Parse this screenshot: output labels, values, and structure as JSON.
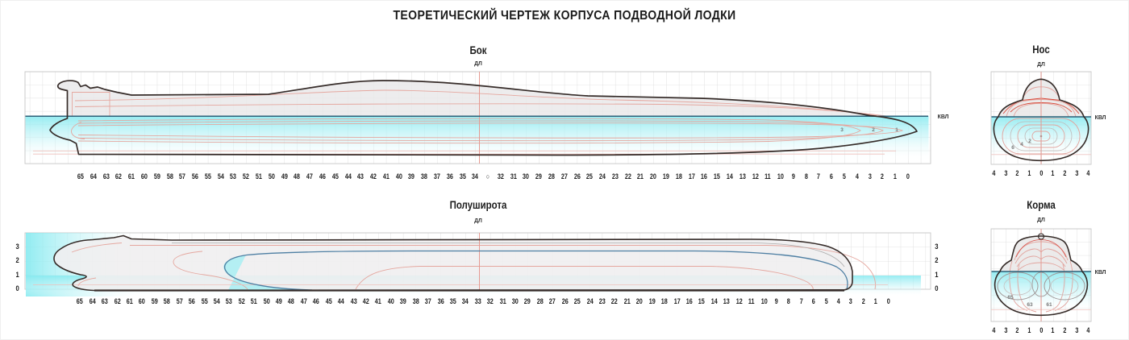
{
  "title": "ТЕОРЕТИЧЕСКИЙ ЧЕРТЕЖ КОРПУСА ПОДВОДНОЙ ЛОДКИ",
  "labels": {
    "centerline": "ДЛ",
    "waterline": "КВЛ"
  },
  "views": {
    "side": {
      "title": "Бок",
      "midship_symbol": "○",
      "stations": [
        "65",
        "64",
        "63",
        "62",
        "61",
        "60",
        "59",
        "58",
        "57",
        "56",
        "55",
        "54",
        "53",
        "52",
        "51",
        "50",
        "49",
        "48",
        "47",
        "46",
        "45",
        "44",
        "43",
        "42",
        "41",
        "40",
        "39",
        "38",
        "37",
        "36",
        "35",
        "34",
        "○",
        "32",
        "31",
        "30",
        "29",
        "28",
        "27",
        "26",
        "25",
        "24",
        "23",
        "22",
        "21",
        "20",
        "19",
        "18",
        "17",
        "16",
        "15",
        "14",
        "13",
        "12",
        "11",
        "10",
        "9",
        "8",
        "7",
        "6",
        "5",
        "4",
        "3",
        "2",
        "1",
        "0"
      ],
      "frame_labels": [
        "3",
        "2",
        "1"
      ]
    },
    "half_breadth": {
      "title": "Полуширота",
      "stations": [
        "65",
        "64",
        "63",
        "62",
        "61",
        "60",
        "59",
        "58",
        "57",
        "56",
        "55",
        "54",
        "53",
        "52",
        "51",
        "50",
        "49",
        "48",
        "47",
        "46",
        "45",
        "44",
        "43",
        "42",
        "41",
        "40",
        "39",
        "38",
        "37",
        "36",
        "35",
        "34",
        "33",
        "32",
        "31",
        "30",
        "29",
        "28",
        "27",
        "26",
        "25",
        "24",
        "23",
        "22",
        "21",
        "20",
        "19",
        "18",
        "17",
        "16",
        "15",
        "14",
        "13",
        "12",
        "11",
        "10",
        "9",
        "8",
        "7",
        "6",
        "5",
        "4",
        "3",
        "2",
        "1",
        "0"
      ],
      "scale": [
        "3",
        "2",
        "1",
        "0"
      ]
    },
    "bow": {
      "title": "Нос",
      "axis": [
        "4",
        "3",
        "2",
        "1",
        "0",
        "1",
        "2",
        "3",
        "4"
      ],
      "frame_labels": [
        "6",
        "4",
        "2"
      ]
    },
    "stern": {
      "title": "Корма",
      "axis": [
        "4",
        "3",
        "2",
        "1",
        "0",
        "1",
        "2",
        "3",
        "4"
      ],
      "frame_labels": [
        "65",
        "63",
        "61"
      ]
    }
  },
  "colors": {
    "water": "#7FE9EF",
    "hull_fill": "#E9E7E8",
    "outline": "#352B28",
    "frame_lines": "#E5A79F",
    "waterline_blue": "#2B6078",
    "plan_waterline": "#4E7FA3",
    "centerline_red": "#E59A92",
    "grid": "#DCDCDC"
  }
}
